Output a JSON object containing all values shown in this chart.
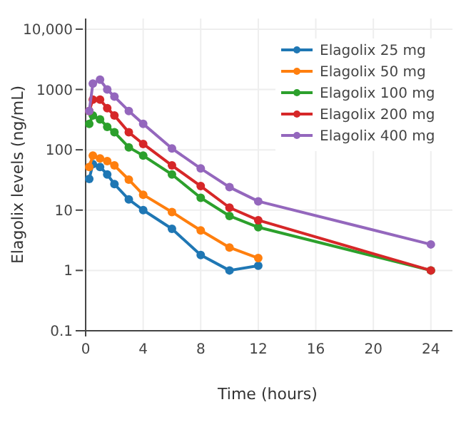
{
  "chart_data": {
    "type": "line",
    "xlabel": "Time (hours)",
    "ylabel": "Elagolix levels (ng/mL)",
    "x": [
      0.25,
      0.5,
      1,
      1.5,
      2,
      3,
      4,
      6,
      8,
      10,
      12,
      24
    ],
    "series": [
      {
        "name": "Elagolix 25 mg",
        "color": "#1f77b4",
        "values": [
          33,
          58,
          52,
          39,
          27,
          15,
          10,
          4.9,
          1.8,
          1.0,
          1.2,
          null
        ]
      },
      {
        "name": "Elagolix 50 mg",
        "color": "#ff7f0e",
        "values": [
          52,
          80,
          72,
          65,
          55,
          32,
          18,
          9.3,
          4.6,
          2.4,
          1.6,
          null
        ]
      },
      {
        "name": "Elagolix 100 mg",
        "color": "#2ca02c",
        "values": [
          270,
          370,
          320,
          240,
          195,
          110,
          80,
          39,
          16,
          8,
          5.2,
          1.0
        ]
      },
      {
        "name": "Elagolix 200 mg",
        "color": "#d62728",
        "values": [
          440,
          680,
          680,
          490,
          370,
          195,
          125,
          55,
          25,
          11,
          6.8,
          1.0
        ]
      },
      {
        "name": "Elagolix 400 mg",
        "color": "#9467bd",
        "values": [
          440,
          1250,
          1450,
          1000,
          760,
          440,
          270,
          105,
          49,
          24,
          14,
          2.7
        ]
      }
    ],
    "log": "y",
    "xlim": [
      -0.2,
      25.5
    ],
    "ylim": [
      0.1,
      15000
    ],
    "xticks": [
      0,
      4,
      8,
      12,
      16,
      20,
      24
    ],
    "yticks": [
      0.1,
      1,
      10,
      100,
      1000,
      {
        "value": 10000,
        "label": "10,000"
      }
    ],
    "grid": true,
    "legend": "top right",
    "marker": "circle",
    "line_style": "solid"
  }
}
